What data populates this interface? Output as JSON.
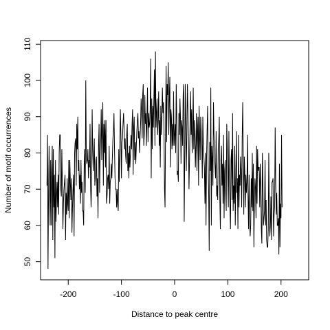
{
  "chart_data": {
    "type": "line",
    "title": "",
    "xlabel": "Distance to peak centre",
    "ylabel": "Number of motif occurrences",
    "xlim": [
      -252,
      252
    ],
    "ylim": [
      45,
      111
    ],
    "grid": false,
    "legend": "none",
    "x_ticks": [
      -200,
      -100,
      0,
      100,
      200
    ],
    "x_tick_labels": [
      "-200",
      "-100",
      "0",
      "100",
      "200"
    ],
    "y_ticks": [
      50,
      60,
      70,
      80,
      90,
      100,
      110
    ],
    "y_tick_labels": [
      "50",
      "60",
      "70",
      "80",
      "90",
      "100",
      "110"
    ],
    "x_start": -240,
    "x_step": 1,
    "line_color": "#000000",
    "values": [
      71,
      85,
      48,
      69,
      82,
      70,
      60,
      78,
      60,
      75,
      82,
      56,
      81,
      65,
      74,
      51,
      78,
      61,
      68,
      72,
      65,
      74,
      63,
      80,
      85,
      85,
      70,
      68,
      81,
      71,
      59,
      66,
      70,
      72,
      74,
      56,
      69,
      63,
      73,
      66,
      64,
      78,
      62,
      78,
      72,
      67,
      73,
      58,
      65,
      70,
      74,
      57,
      80,
      83,
      84,
      71,
      88,
      81,
      90,
      75,
      78,
      70,
      74,
      66,
      78,
      69,
      72,
      64,
      64,
      60,
      77,
      81,
      69,
      100,
      79,
      77,
      78,
      81,
      73,
      78,
      76,
      88,
      71,
      65,
      74,
      92,
      80,
      75,
      80,
      84,
      71,
      73,
      78,
      79,
      68,
      73,
      62,
      82,
      88,
      69,
      79,
      83,
      92,
      78,
      86,
      94,
      71,
      88,
      80,
      89,
      76,
      89,
      66,
      68,
      73,
      74,
      70,
      82,
      66,
      72,
      73,
      77,
      73,
      79,
      84,
      86,
      91,
      81,
      73,
      70,
      70,
      65,
      70,
      66,
      64,
      81,
      72,
      81,
      92,
      85,
      73,
      83,
      84,
      88,
      91,
      87,
      81,
      84,
      79,
      77,
      85,
      88,
      75,
      80,
      73,
      82,
      76,
      80,
      85,
      81,
      88,
      92,
      74,
      87,
      90,
      78,
      83,
      77,
      82,
      86,
      89,
      91,
      84,
      86,
      80,
      84,
      88,
      95,
      92,
      84,
      96,
      99,
      82,
      85,
      96,
      88,
      91,
      82,
      90,
      98,
      83,
      91,
      87,
      88,
      92,
      106,
      73,
      95,
      81,
      93,
      87,
      95,
      103,
      82,
      108,
      87,
      91,
      95,
      85,
      89,
      97,
      82,
      89,
      76,
      93,
      85,
      90,
      98,
      91,
      94,
      87,
      70,
      65,
      88,
      104,
      83,
      99,
      96,
      105,
      85,
      95,
      101,
      76,
      92,
      90,
      81,
      88,
      82,
      97,
      82,
      85,
      88,
      80,
      99,
      89,
      74,
      75,
      72,
      91,
      85,
      95,
      90,
      77,
      89,
      87,
      82,
      96,
      99,
      61,
      79,
      99,
      88,
      75,
      86,
      99,
      92,
      84,
      70,
      78,
      88,
      97,
      85,
      92,
      80,
      85,
      98,
      81,
      89,
      84,
      76,
      83,
      91,
      75,
      86,
      90,
      71,
      93,
      85,
      78,
      90,
      86,
      83,
      73,
      90,
      82,
      79,
      76,
      66,
      80,
      60,
      78,
      86,
      93,
      77,
      69,
      53,
      83,
      75,
      98,
      60,
      82,
      79,
      71,
      94,
      85,
      79,
      76,
      73,
      86,
      68,
      71,
      67,
      81,
      84,
      90,
      67,
      59,
      78,
      82,
      71,
      77,
      66,
      85,
      62,
      75,
      78,
      69,
      64,
      88,
      81,
      73,
      65,
      86,
      72,
      65,
      59,
      78,
      81,
      67,
      91,
      64,
      71,
      66,
      82,
      60,
      73,
      86,
      69,
      73,
      59,
      85,
      65,
      74,
      71,
      79,
      75,
      65,
      84,
      94,
      79,
      63,
      79,
      74,
      65,
      74,
      69,
      72,
      85,
      68,
      59,
      74,
      62,
      57,
      60,
      73,
      65,
      80,
      64,
      77,
      54,
      67,
      73,
      70,
      62,
      82,
      66,
      81,
      75,
      76,
      76,
      65,
      77,
      71,
      59,
      55,
      80,
      71,
      60,
      62,
      64,
      78,
      60,
      67,
      56,
      54,
      54,
      59,
      80,
      62,
      57,
      60,
      68,
      56,
      72,
      72,
      73,
      57,
      63,
      65,
      87,
      72,
      63,
      69,
      60,
      60,
      62,
      52,
      77,
      54,
      66,
      62,
      85,
      65
    ]
  }
}
